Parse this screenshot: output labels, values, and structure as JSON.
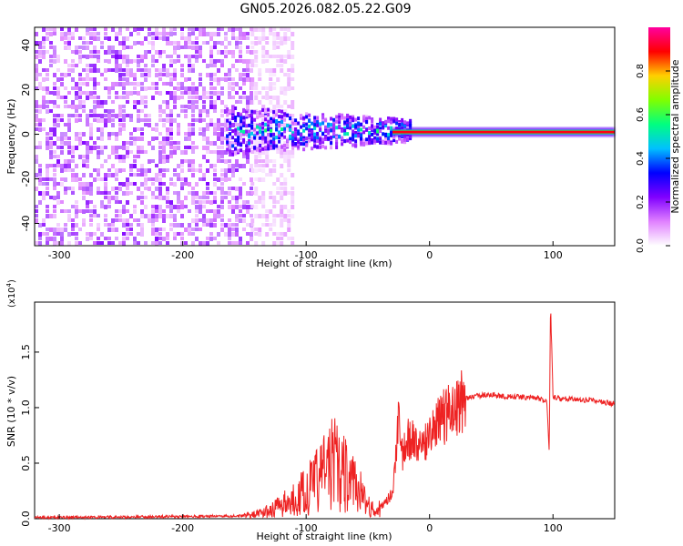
{
  "title": "GN05.2026.082.05.22.G09",
  "chart_data": [
    {
      "type": "heatmap",
      "xlabel": "Height of straight line (km)",
      "ylabel": "Frequency (Hz)",
      "xlim": [
        -320,
        150
      ],
      "ylim": [
        -50,
        48
      ],
      "xticks": [
        -300,
        -200,
        -100,
        0,
        100
      ],
      "yticks": [
        -40,
        -20,
        0,
        20,
        40
      ],
      "colorbar": {
        "label": "Normalized spectral amplitude",
        "range": [
          0.0,
          1.0
        ],
        "ticks": [
          "0.0",
          "0.2",
          "0.4",
          "0.6",
          "0.8"
        ],
        "colors": [
          "#ffffff",
          "#e080ff",
          "#8000ff",
          "#0000ff",
          "#00c0ff",
          "#00ff80",
          "#80ff00",
          "#ffd000",
          "#ff0000",
          "#ff00a0"
        ]
      },
      "regions": [
        {
          "x": [
            -320,
            -145
          ],
          "y": [
            -50,
            48
          ],
          "amplitude": 0.12,
          "note_is_text": false
        },
        {
          "x": [
            -145,
            -110
          ],
          "y": [
            -50,
            48
          ],
          "amplitude": 0.05
        },
        {
          "x": [
            -165,
            -15
          ],
          "y": [
            -10,
            12
          ],
          "amplitude": 0.35
        },
        {
          "x": [
            -30,
            150
          ],
          "y": [
            -1,
            3
          ],
          "amplitude": 0.9
        }
      ]
    },
    {
      "type": "line",
      "xlabel": "Height of straight line (km)",
      "ylabel": "SNR (10 * v/v)",
      "y_multiplier": "(x10",
      "y_multiplier_exp": "4",
      "y_multiplier_close": ")",
      "xlim": [
        -320,
        150
      ],
      "ylim": [
        0,
        1.95
      ],
      "xticks": [
        -300,
        -200,
        -100,
        0,
        100
      ],
      "yticks": [
        "0.0",
        "0.5",
        "1.0",
        "1.5"
      ],
      "color": "#ee2222",
      "x": [
        -320,
        -250,
        -200,
        -160,
        -150,
        -140,
        -130,
        -120,
        -110,
        -100,
        -90,
        -85,
        -80,
        -75,
        -70,
        -65,
        -60,
        -55,
        -50,
        -45,
        -40,
        -35,
        -30,
        -27,
        -25,
        -23,
        -20,
        -15,
        -10,
        -5,
        0,
        5,
        10,
        15,
        20,
        25,
        30,
        40,
        50,
        60,
        70,
        80,
        90,
        95,
        97,
        98,
        100,
        103,
        110,
        120,
        130,
        140,
        150
      ],
      "y": [
        0.01,
        0.015,
        0.02,
        0.025,
        0.03,
        0.04,
        0.07,
        0.12,
        0.18,
        0.25,
        0.35,
        0.45,
        0.5,
        0.48,
        0.42,
        0.35,
        0.3,
        0.22,
        0.12,
        0.08,
        0.1,
        0.15,
        0.25,
        0.6,
        1.0,
        0.55,
        0.65,
        0.75,
        0.6,
        0.65,
        0.72,
        0.82,
        0.9,
        0.95,
        1.0,
        1.05,
        1.08,
        1.11,
        1.12,
        1.1,
        1.1,
        1.09,
        1.08,
        1.05,
        0.6,
        1.95,
        1.1,
        1.08,
        1.08,
        1.07,
        1.07,
        1.05,
        1.03
      ]
    }
  ]
}
